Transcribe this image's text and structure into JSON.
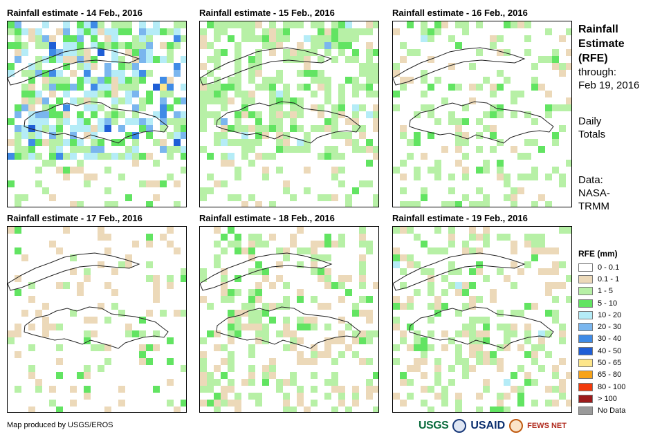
{
  "panels": [
    {
      "title": "Rainfall estimate - 14 Feb., 2016"
    },
    {
      "title": "Rainfall estimate - 15 Feb., 2016"
    },
    {
      "title": "Rainfall estimate - 16 Feb., 2016"
    },
    {
      "title": "Rainfall estimate - 17 Feb., 2016"
    },
    {
      "title": "Rainfall estimate - 18 Feb., 2016"
    },
    {
      "title": "Rainfall estimate - 19 Feb., 2016"
    }
  ],
  "side": {
    "title_lines": [
      "Rainfall",
      "Estimate",
      "(RFE)"
    ],
    "through_label": "through:",
    "through_date": "Feb 19, 2016",
    "totals_lines": [
      "Daily",
      "Totals"
    ],
    "data_lines": [
      "Data:",
      "NASA-",
      "TRMM"
    ]
  },
  "legend": {
    "title": "RFE (mm)",
    "items": [
      {
        "label": "0 - 0.1",
        "color": "#ffffff"
      },
      {
        "label": "0.1 - 1",
        "color": "#ecd9b9"
      },
      {
        "label": "1 - 5",
        "color": "#b7f0a6"
      },
      {
        "label": "5 - 10",
        "color": "#62e462"
      },
      {
        "label": "10 - 20",
        "color": "#b5ecf7"
      },
      {
        "label": "20 - 30",
        "color": "#7ab6ee"
      },
      {
        "label": "30 - 40",
        "color": "#3f8be6"
      },
      {
        "label": "40 - 50",
        "color": "#1f5ed6"
      },
      {
        "label": "50 - 65",
        "color": "#fde68a"
      },
      {
        "label": "65 - 80",
        "color": "#f7a319"
      },
      {
        "label": "80 - 100",
        "color": "#f23a0c"
      },
      {
        "label": "> 100",
        "color": "#9c1a1a"
      },
      {
        "label": "No Data",
        "color": "#9a9a9a"
      }
    ]
  },
  "credit": "Map produced by USGS/EROS",
  "logos": {
    "usgs": "USGS",
    "usaid": "USAID",
    "fews": "FEWS NET"
  }
}
